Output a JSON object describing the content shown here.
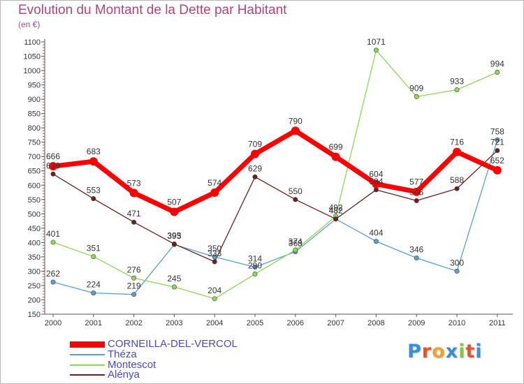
{
  "chart_data": {
    "type": "line",
    "title": "Evolution du Montant de la Dette par Habitant",
    "subtitle": "(en €)",
    "x": [
      "2000",
      "2001",
      "2002",
      "2003",
      "2004",
      "2005",
      "2006",
      "2007",
      "2008",
      "2009",
      "2010",
      "2011"
    ],
    "yticks": [
      150,
      200,
      250,
      300,
      350,
      400,
      450,
      500,
      550,
      600,
      650,
      700,
      750,
      800,
      850,
      900,
      950,
      1000,
      1050,
      1100
    ],
    "ylim": [
      150,
      1100
    ],
    "grid": false,
    "legend_position": "bottom-left",
    "series": [
      {
        "name": "CORNEILLA-DEL-VERCOL",
        "color": "#ff0000",
        "values": [
          666,
          683,
          573,
          507,
          574,
          709,
          790,
          699,
          604,
          577,
          716,
          652
        ]
      },
      {
        "name": "Théza",
        "color": "#5aa0d0",
        "values": [
          262,
          224,
          219,
          393,
          350,
          314,
          368,
          482,
          404,
          346,
          300,
          758
        ]
      },
      {
        "name": "Montescot",
        "color": "#8fd65a",
        "values": [
          401,
          351,
          276,
          245,
          204,
          290,
          374,
          492,
          1071,
          909,
          933,
          994
        ]
      },
      {
        "name": "Alénya",
        "color": "#6b1f1f",
        "values": [
          639,
          553,
          471,
          395,
          333,
          629,
          550,
          482,
          584,
          546,
          588,
          721
        ]
      }
    ]
  },
  "branding": {
    "text": "Proxiti",
    "colors": [
      "#3a8fd8",
      "#e8522b",
      "#f2a12a",
      "#3a8fd8",
      "#8cc63f",
      "#e8522b",
      "#3a8fd8"
    ]
  }
}
